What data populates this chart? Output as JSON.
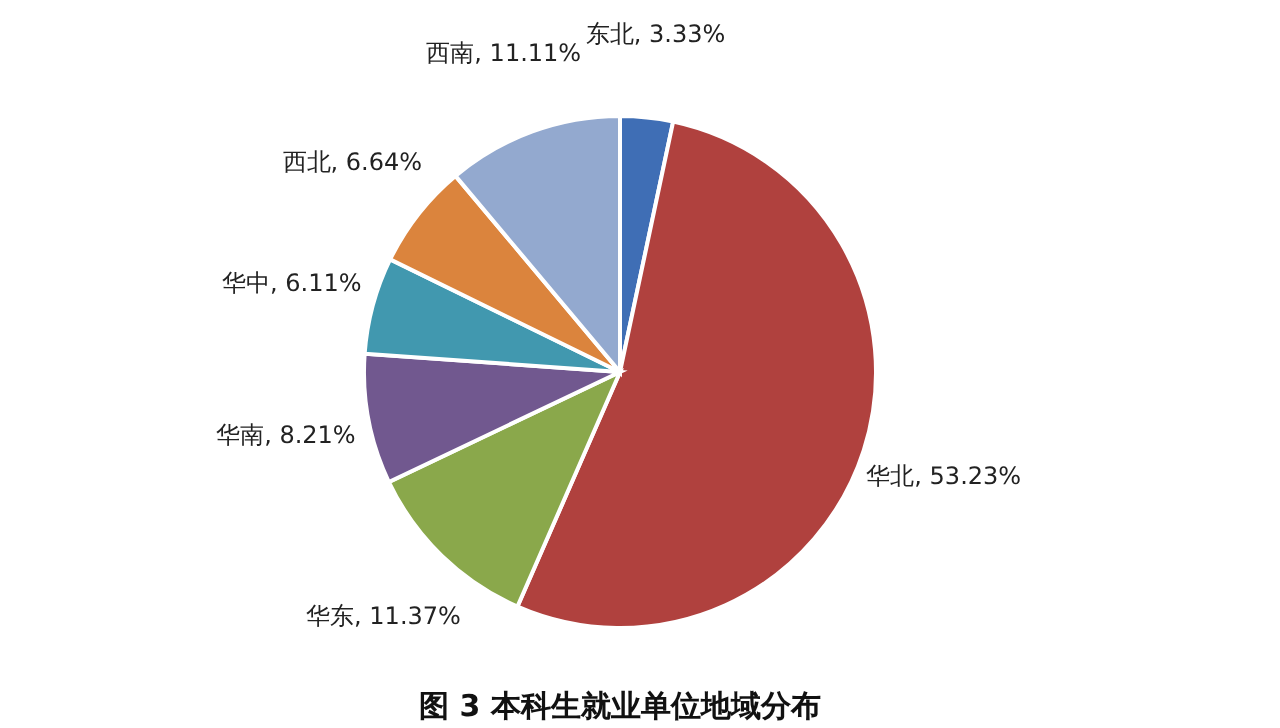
{
  "chart_data": {
    "type": "pie",
    "title": "图 3 本科生就业单位地域分布",
    "categories": [
      "东北",
      "华北",
      "华东",
      "华南",
      "华中",
      "西北",
      "西南"
    ],
    "values": [
      3.33,
      53.23,
      11.37,
      8.21,
      6.11,
      6.64,
      11.11
    ],
    "value_labels": [
      "3.33%",
      "53.23%",
      "11.37%",
      "8.21%",
      "6.11%",
      "6.64%",
      "11.11%"
    ],
    "colors": [
      "#3f6eb5",
      "#b0413e",
      "#8aa84b",
      "#71588f",
      "#4198af",
      "#db843d",
      "#93a9cf"
    ],
    "legend": false
  }
}
